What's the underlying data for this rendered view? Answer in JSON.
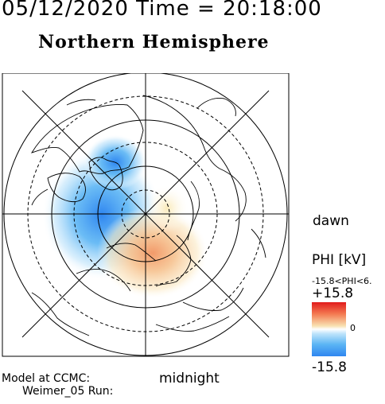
{
  "header": {
    "title_line": "05/12/2020 Time = 20:18:00",
    "hemisphere": "Northern Hemisphere"
  },
  "orientation": {
    "dawn_label": "dawn",
    "midnight_label": "midnight"
  },
  "legend": {
    "phi_title": "PHI [kV]",
    "phi_range": "-15.8<PHI<6.",
    "max_label": "+15.8",
    "min_label": "-15.8",
    "zero_label": "0",
    "colors": {
      "positive": "#e11b1b",
      "neutral": "#ffffff",
      "negative": "#2f86f0"
    }
  },
  "footer": {
    "model_line1": "Model at CCMC:",
    "model_line2": "Weimer_05 Run:"
  },
  "map": {
    "potential_min_kV": -15.8,
    "potential_max_kV": 6.0
  }
}
